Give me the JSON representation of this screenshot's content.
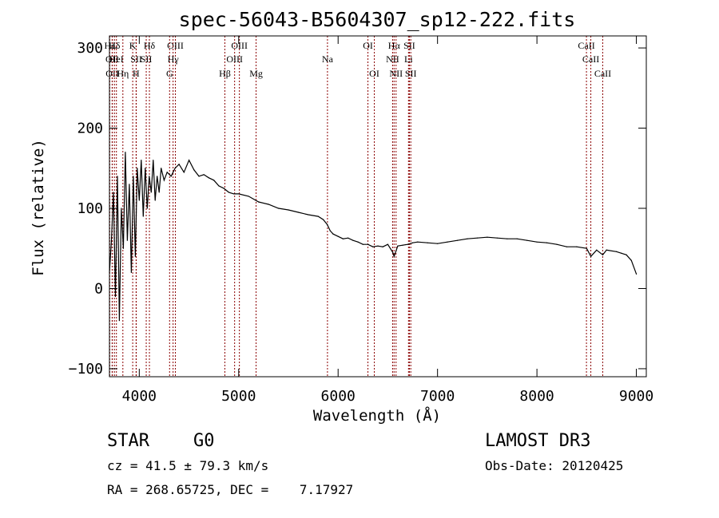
{
  "chart_data": {
    "type": "line",
    "title": "spec-56043-B5604307_sp12-222.fits",
    "xlabel": "Wavelength (Å)",
    "ylabel": "Flux (relative)",
    "xlim": [
      3700,
      9100
    ],
    "ylim": [
      -110,
      315
    ],
    "x_ticks": [
      4000,
      5000,
      6000,
      7000,
      8000,
      9000
    ],
    "y_ticks": [
      -100,
      0,
      100,
      200,
      300
    ],
    "series": [
      {
        "name": "flux",
        "x": [
          3700,
          3720,
          3740,
          3760,
          3780,
          3800,
          3820,
          3840,
          3860,
          3880,
          3900,
          3920,
          3940,
          3960,
          3980,
          4000,
          4020,
          4040,
          4060,
          4080,
          4100,
          4120,
          4140,
          4160,
          4180,
          4200,
          4220,
          4250,
          4280,
          4320,
          4360,
          4400,
          4450,
          4500,
          4550,
          4600,
          4650,
          4700,
          4750,
          4800,
          4850,
          4900,
          4950,
          5000,
          5100,
          5200,
          5300,
          5400,
          5500,
          5600,
          5700,
          5800,
          5850,
          5890,
          5920,
          5950,
          6000,
          6050,
          6100,
          6150,
          6200,
          6250,
          6300,
          6350,
          6400,
          6450,
          6500,
          6550,
          6563,
          6600,
          6650,
          6700,
          6750,
          6800,
          6900,
          7000,
          7100,
          7200,
          7300,
          7400,
          7500,
          7600,
          7700,
          7800,
          7900,
          8000,
          8100,
          8200,
          8300,
          8400,
          8500,
          8542,
          8600,
          8662,
          8700,
          8800,
          8850,
          8900,
          8950,
          9000
        ],
        "values": [
          20,
          60,
          120,
          -10,
          140,
          -40,
          100,
          50,
          170,
          60,
          130,
          20,
          140,
          40,
          150,
          110,
          160,
          90,
          150,
          100,
          140,
          120,
          160,
          110,
          140,
          120,
          150,
          135,
          145,
          140,
          150,
          155,
          145,
          160,
          148,
          140,
          142,
          138,
          135,
          128,
          125,
          120,
          118,
          118,
          115,
          108,
          105,
          100,
          98,
          95,
          92,
          90,
          86,
          80,
          72,
          68,
          65,
          62,
          63,
          60,
          58,
          55,
          55,
          52,
          53,
          52,
          55,
          45,
          40,
          53,
          54,
          55,
          57,
          58,
          57,
          56,
          58,
          60,
          62,
          63,
          64,
          63,
          62,
          62,
          60,
          58,
          57,
          55,
          52,
          52,
          50,
          40,
          48,
          42,
          48,
          46,
          44,
          42,
          35,
          18
        ]
      }
    ],
    "line_colour": "#000000",
    "marker_colour": "#8b0000",
    "lines": [
      {
        "label": "Hε",
        "x": 3703,
        "row": 0
      },
      {
        "label": "OII",
        "x": 3727,
        "row": 1
      },
      {
        "label": "OII",
        "x": 3729,
        "row": 2
      },
      {
        "label": "Hδ",
        "x": 3750,
        "row": 0
      },
      {
        "label": "HeI",
        "x": 3770,
        "row": 1
      },
      {
        "label": "Hη",
        "x": 3835,
        "row": 2
      },
      {
        "label": "K",
        "x": 3934,
        "row": 0
      },
      {
        "label": "SII",
        "x": 3970,
        "row": 1
      },
      {
        "label": "H",
        "x": 3968,
        "row": 2
      },
      {
        "label": "Hδ",
        "x": 4102,
        "row": 0
      },
      {
        "label": "SII",
        "x": 4070,
        "row": 1
      },
      {
        "label": "OIII",
        "x": 4363,
        "row": 0
      },
      {
        "label": "Hγ",
        "x": 4340,
        "row": 1
      },
      {
        "label": "G",
        "x": 4305,
        "row": 2
      },
      {
        "label": "OIII",
        "x": 5007,
        "row": 0
      },
      {
        "label": "OIII",
        "x": 4959,
        "row": 1
      },
      {
        "label": "Hβ",
        "x": 4861,
        "row": 2
      },
      {
        "label": "Mg",
        "x": 5175,
        "row": 2
      },
      {
        "label": "Na",
        "x": 5893,
        "row": 1
      },
      {
        "label": "OI",
        "x": 6300,
        "row": 0
      },
      {
        "label": "OI",
        "x": 6364,
        "row": 2
      },
      {
        "label": "Hα",
        "x": 6563,
        "row": 0
      },
      {
        "label": "NII",
        "x": 6548,
        "row": 1
      },
      {
        "label": "NII",
        "x": 6583,
        "row": 2
      },
      {
        "label": "SII",
        "x": 6717,
        "row": 0
      },
      {
        "label": "Li",
        "x": 6708,
        "row": 1
      },
      {
        "label": "SII",
        "x": 6731,
        "row": 2
      },
      {
        "label": "CaII",
        "x": 8498,
        "row": 0
      },
      {
        "label": "CaII",
        "x": 8542,
        "row": 1
      },
      {
        "label": "CaII",
        "x": 8662,
        "row": 2
      }
    ]
  },
  "info": {
    "class_label": "STAR",
    "subclass_label": "G0",
    "survey_label": "LAMOST DR3",
    "velocity_text": "cz = 41.5 ± 79.3 km/s",
    "obs_date_text": "Obs-Date: 20120425",
    "coord_text": "RA = 268.65725, DEC =    7.17927"
  }
}
